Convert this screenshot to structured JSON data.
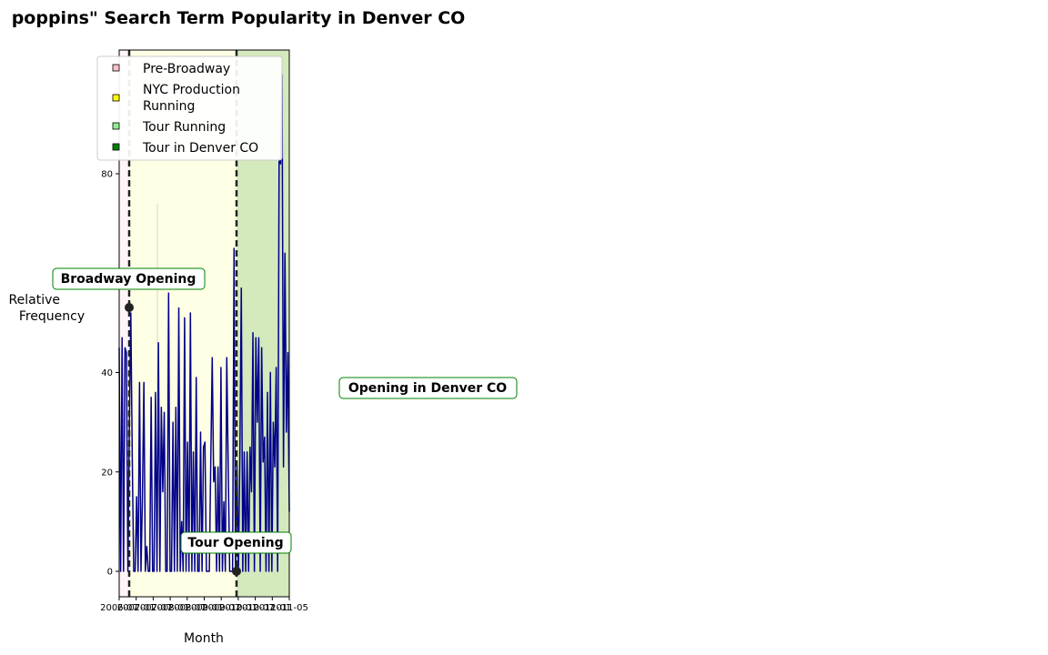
{
  "chart_data": {
    "type": "line",
    "title": "poppins\" Search Term Popularity in Denver CO",
    "xlabel": "Month",
    "ylabel": "Relative\nFrequency",
    "y_ticks": [
      0,
      20,
      40,
      80
    ],
    "ylim": [
      -5,
      105
    ],
    "x_tick_labels": [
      "2006-07",
      "2007-01",
      "2007-07",
      "2008-01",
      "2008-07",
      "2009-01",
      "2009-07",
      "2010-01",
      "2010-07",
      "2011-01",
      "2011-05"
    ],
    "legend": {
      "placement": "top",
      "entries": [
        {
          "label": "Pre-Broadway",
          "color": "#ffc0cb"
        },
        {
          "label": "NYC Production Running",
          "color": "#ffff00"
        },
        {
          "label": "Tour Running",
          "color": "#90ee90"
        },
        {
          "label": "Tour in Denver CO",
          "color": "#008000"
        }
      ]
    },
    "periods": [
      {
        "name": "Pre-Broadway",
        "color": "#fff5f7"
      },
      {
        "name": "NYC Production Running",
        "color": "#ffffe5"
      },
      {
        "name": "Tour Running",
        "color": "#d4e9bc"
      }
    ],
    "annotations": [
      {
        "text": "Broadway Opening",
        "marker_value": 53
      },
      {
        "text": "Tour Opening",
        "marker_value": 0
      },
      {
        "text": "Opening in Denver CO"
      }
    ],
    "series": [
      {
        "color": "#00008b",
        "values": [
          45,
          0,
          47,
          0,
          45,
          44,
          0,
          29,
          52,
          23,
          0,
          0,
          15,
          0,
          38,
          0,
          15,
          38,
          0,
          5,
          0,
          0,
          35,
          0,
          0,
          36,
          0,
          46,
          0,
          33,
          16,
          32,
          0,
          0,
          56,
          0,
          0,
          30,
          0,
          33,
          0,
          53,
          0,
          10,
          0,
          51,
          0,
          26,
          0,
          52,
          0,
          24,
          0,
          39,
          0,
          0,
          28,
          0,
          25,
          26,
          0,
          0,
          0,
          22,
          43,
          18,
          21,
          0,
          21,
          0,
          41,
          0,
          14,
          0,
          43,
          21,
          0,
          0,
          0,
          65,
          0,
          21,
          0,
          23,
          57,
          0,
          24,
          0,
          24,
          0,
          25,
          16,
          48,
          0,
          47,
          30,
          47,
          0,
          45,
          22,
          27,
          0,
          36,
          0,
          40,
          0,
          30,
          21,
          41,
          0,
          83,
          82,
          100,
          21,
          64,
          28,
          44,
          12
        ]
      }
    ]
  }
}
